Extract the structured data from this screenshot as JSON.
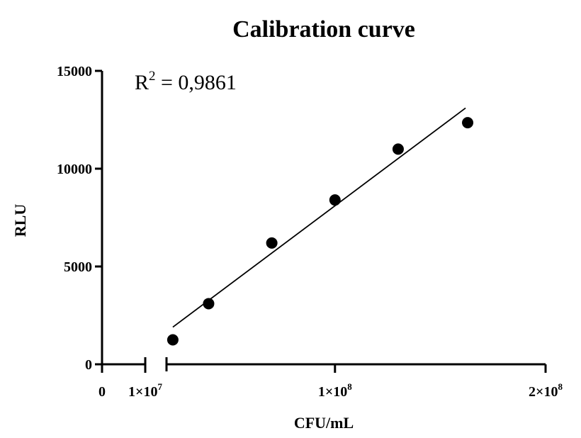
{
  "chart_data": {
    "type": "scatter",
    "title": "Calibration curve",
    "xlabel": "CFU/mL",
    "ylabel": "RLU",
    "annotation": {
      "text": "R",
      "superscript": "2",
      "suffix": " = 0,9861"
    },
    "x_axis": {
      "broken": true,
      "segment1_range": [
        0,
        10000000
      ],
      "segment2_range": [
        20000000,
        200000000
      ],
      "ticks": [
        {
          "value": 0,
          "base": "0",
          "exp": ""
        },
        {
          "value": 10000000,
          "base": "1×10",
          "exp": "7"
        },
        {
          "value": 100000000,
          "base": "1×10",
          "exp": "8"
        },
        {
          "value": 200000000,
          "base": "2×10",
          "exp": "8"
        }
      ]
    },
    "y_axis": {
      "range": [
        0,
        15000
      ],
      "ticks": [
        "0",
        "5000",
        "10000",
        "15000"
      ],
      "tick_values": [
        0,
        5000,
        10000,
        15000
      ]
    },
    "points": [
      {
        "x": 23000000,
        "y": 1250
      },
      {
        "x": 40000000,
        "y": 3100
      },
      {
        "x": 70000000,
        "y": 6200
      },
      {
        "x": 100000000,
        "y": 8400
      },
      {
        "x": 130000000,
        "y": 11000
      },
      {
        "x": 163000000,
        "y": 12350
      }
    ],
    "fit_line": {
      "x_start": 23000000,
      "y_start": 1900,
      "x_end": 162000000,
      "y_end": 13100
    },
    "grid": false,
    "legend": "none",
    "colors": {
      "points": "#000000",
      "line": "#000000",
      "axes": "#000000"
    }
  }
}
